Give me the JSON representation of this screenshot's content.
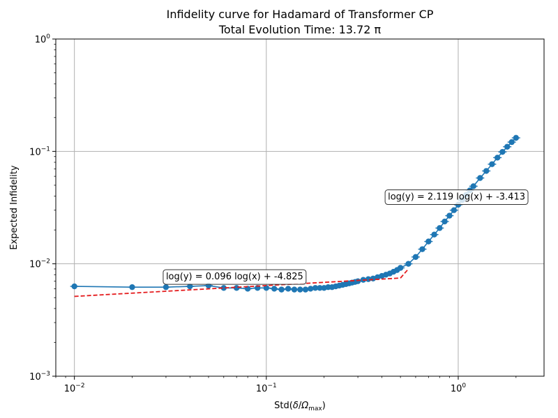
{
  "chart_data": {
    "type": "line",
    "title": "Infidelity curve for Hadamard of Transformer CP",
    "subtitle": "Total Evolution Time: 13.72 π",
    "xlabel_main": "Std(",
    "xlabel_delta": "δ",
    "xlabel_slash": "/",
    "xlabel_omega": "Ω",
    "xlabel_sub": "max",
    "xlabel_close": ")",
    "ylabel": "Expected Infidelity",
    "xscale": "log",
    "yscale": "log",
    "xlim": [
      0.008,
      2.8
    ],
    "ylim": [
      0.001,
      1
    ],
    "grid": true,
    "xticks": [
      {
        "value": 0.01,
        "base": "10",
        "exp": "−2"
      },
      {
        "value": 0.1,
        "base": "10",
        "exp": "−1"
      },
      {
        "value": 1,
        "base": "10",
        "exp": "0"
      }
    ],
    "yticks": [
      {
        "value": 0.001,
        "base": "10",
        "exp": "−3"
      },
      {
        "value": 0.01,
        "base": "10",
        "exp": "−2"
      },
      {
        "value": 0.1,
        "base": "10",
        "exp": "−1"
      },
      {
        "value": 1,
        "base": "10",
        "exp": "0"
      }
    ],
    "series": [
      {
        "color": "#1f77b4",
        "style": "solid-with-markers",
        "x": [
          0.01,
          0.02,
          0.03,
          0.04,
          0.05,
          0.06,
          0.07,
          0.08,
          0.09,
          0.1,
          0.11,
          0.12,
          0.13,
          0.14,
          0.15,
          0.16,
          0.17,
          0.18,
          0.19,
          0.2,
          0.21,
          0.22,
          0.23,
          0.24,
          0.25,
          0.26,
          0.27,
          0.28,
          0.29,
          0.3,
          0.32,
          0.34,
          0.36,
          0.38,
          0.4,
          0.42,
          0.44,
          0.46,
          0.48,
          0.5,
          0.55,
          0.6,
          0.65,
          0.7,
          0.75,
          0.8,
          0.85,
          0.9,
          0.95,
          1.0,
          1.05,
          1.1,
          1.15,
          1.2,
          1.3,
          1.4,
          1.5,
          1.6,
          1.7,
          1.8,
          1.9,
          2.0
        ],
        "y": [
          0.0063,
          0.0062,
          0.0062,
          0.0063,
          0.0064,
          0.0061,
          0.0061,
          0.006,
          0.0061,
          0.0061,
          0.006,
          0.0059,
          0.006,
          0.0059,
          0.0059,
          0.0059,
          0.006,
          0.0061,
          0.0061,
          0.0061,
          0.0062,
          0.0062,
          0.0063,
          0.0064,
          0.0065,
          0.0066,
          0.0067,
          0.0068,
          0.0069,
          0.007,
          0.0072,
          0.0073,
          0.0074,
          0.0076,
          0.0078,
          0.008,
          0.0082,
          0.0085,
          0.0088,
          0.0092,
          0.01,
          0.0115,
          0.0135,
          0.0158,
          0.0182,
          0.0208,
          0.0238,
          0.0268,
          0.03,
          0.0335,
          0.037,
          0.041,
          0.045,
          0.049,
          0.058,
          0.067,
          0.077,
          0.088,
          0.099,
          0.11,
          0.121,
          0.132
        ]
      },
      {
        "color": "#e41a1c",
        "style": "dashed",
        "x": [
          0.01,
          0.5
        ],
        "y": [
          0.00513,
          0.00747
        ]
      },
      {
        "color": "#e41a1c",
        "style": "dashed",
        "x": [
          0.5,
          0.55
        ],
        "y": [
          0.00747,
          0.009
        ]
      }
    ],
    "annotations": [
      {
        "text": "log(y) = 0.096 log(x) + -4.825",
        "x": 0.03,
        "y": 0.0078
      },
      {
        "text": "log(y) = 2.119 log(x) + -3.413",
        "x": 0.43,
        "y": 0.04
      }
    ]
  }
}
